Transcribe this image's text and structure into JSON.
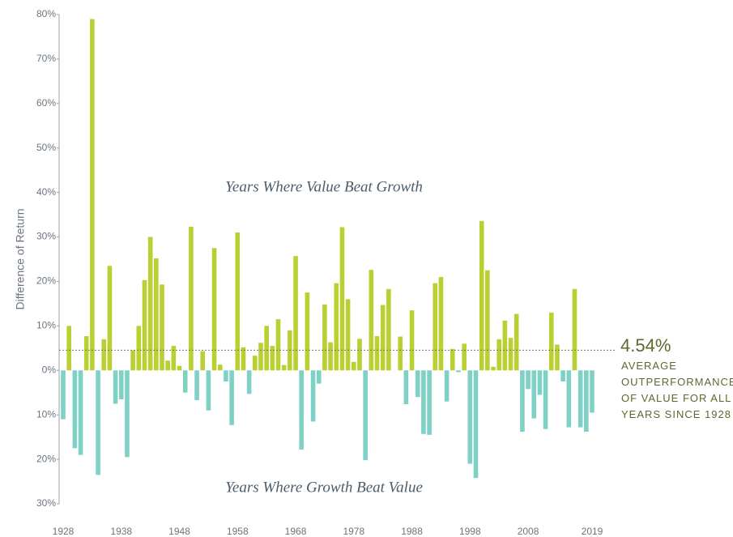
{
  "chart_data": {
    "type": "bar",
    "y_axis_label": "Difference of Return",
    "annotations": [
      "Years Where Value Beat Growth",
      "Years Where Growth Beat Value"
    ],
    "average": {
      "value": 4.54,
      "label": "4.54%"
    },
    "average_note": [
      "AVERAGE",
      "OUTPERFORMANCE",
      "OF VALUE FOR ALL",
      "YEARS SINCE 1928"
    ],
    "positive_color": "#b9cf32",
    "negative_color": "#7fd0c5",
    "categories": [
      "1928",
      null,
      null,
      null,
      null,
      null,
      null,
      null,
      null,
      null,
      "1938",
      null,
      null,
      null,
      null,
      null,
      null,
      null,
      null,
      null,
      "1948",
      null,
      null,
      null,
      null,
      null,
      null,
      null,
      null,
      null,
      "1958",
      null,
      null,
      null,
      null,
      null,
      null,
      null,
      null,
      null,
      "1968",
      null,
      null,
      null,
      null,
      null,
      null,
      null,
      null,
      null,
      "1978",
      null,
      null,
      null,
      null,
      null,
      null,
      null,
      null,
      null,
      "1988",
      null,
      null,
      null,
      null,
      null,
      null,
      null,
      null,
      null,
      "1998",
      null,
      null,
      null,
      null,
      null,
      null,
      null,
      null,
      null,
      "2008",
      null,
      null,
      null,
      null,
      null,
      null,
      null,
      null,
      null,
      null,
      "2019"
    ],
    "values": [
      -11,
      10,
      -17.5,
      -19,
      7.7,
      79,
      -23.5,
      7,
      23.5,
      -7.5,
      -6.5,
      -19.5,
      4.5,
      10,
      20.3,
      30,
      25.2,
      19.3,
      2.2,
      5.5,
      1,
      -5,
      32.3,
      -6.7,
      4.3,
      -9,
      27.5,
      1.3,
      -2.5,
      -12.3,
      31,
      5.2,
      -5.3,
      3.3,
      6.2,
      10,
      5.5,
      11.5,
      1.2,
      9,
      25.7,
      -17.8,
      17.5,
      -11.5,
      -3,
      14.8,
      6.3,
      19.6,
      32.2,
      16,
      1.9,
      7.1,
      -20.2,
      22.6,
      7.7,
      14.7,
      18.3,
      0,
      7.6,
      -7.6,
      13.5,
      -6,
      -14.3,
      -14.5,
      19.6,
      21,
      -7,
      4.8,
      -0.4,
      6,
      -21,
      -24.2,
      33.6,
      22.5,
      0.8,
      7,
      11.2,
      7.3,
      12.7,
      -13.8,
      -4.2,
      -10.8,
      -5.5,
      -13.2,
      13,
      5.8,
      -2.5,
      -12.8,
      18.3,
      -12.8,
      -13.8,
      -9.5
    ],
    "ylim": [
      -30,
      80
    ],
    "yticks": [
      {
        "value": -30,
        "label": "30%"
      },
      {
        "value": -20,
        "label": "20%"
      },
      {
        "value": -10,
        "label": "10%"
      },
      {
        "value": 0,
        "label": "0%"
      },
      {
        "value": 10,
        "label": "10%"
      },
      {
        "value": 20,
        "label": "20%"
      },
      {
        "value": 30,
        "label": "30%"
      },
      {
        "value": 40,
        "label": "40%"
      },
      {
        "value": 50,
        "label": "50%"
      },
      {
        "value": 60,
        "label": "60%"
      },
      {
        "value": 70,
        "label": "70%"
      },
      {
        "value": 80,
        "label": "80%"
      }
    ]
  }
}
